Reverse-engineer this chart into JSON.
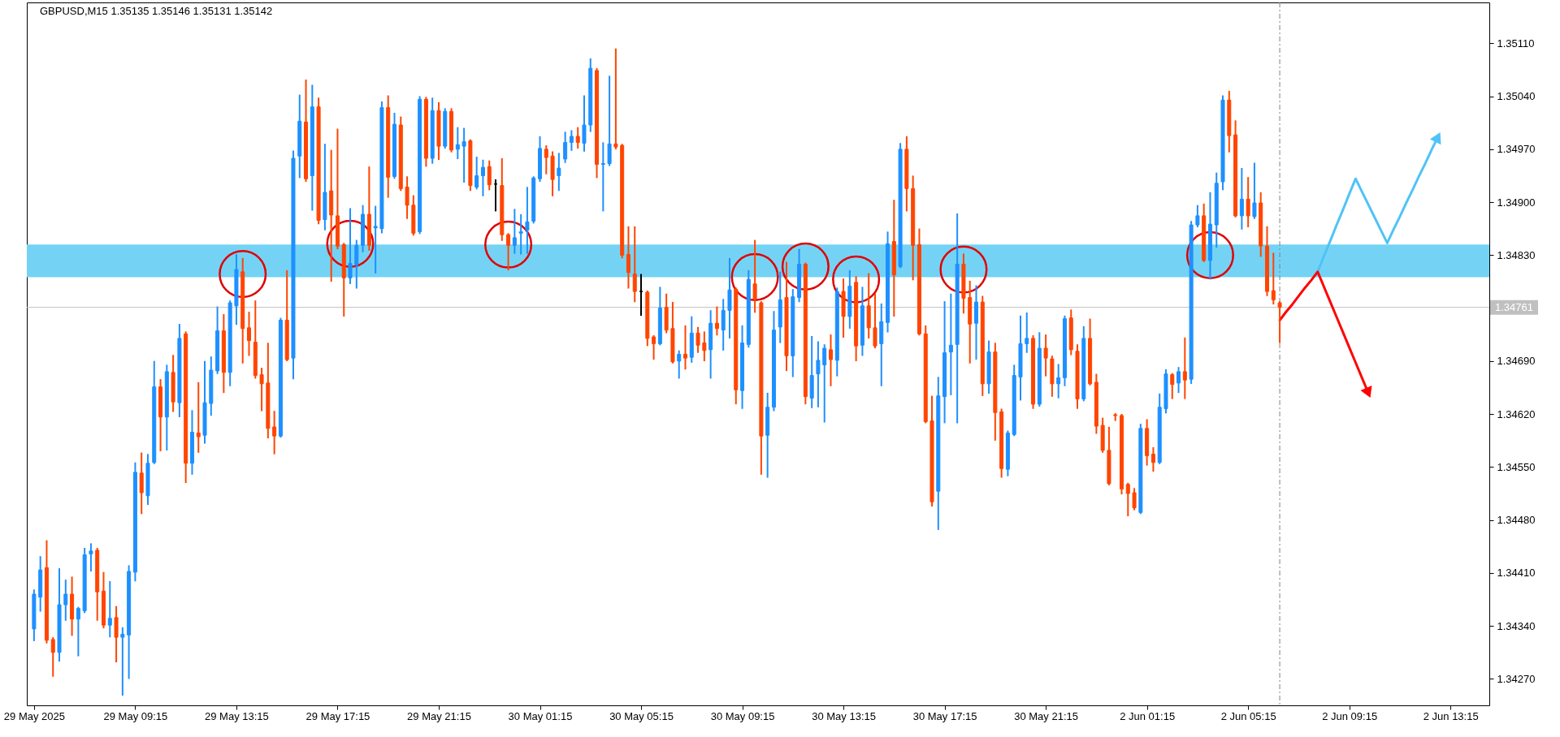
{
  "chart_data": {
    "type": "candlestick",
    "title": "GBPUSD,M15 1.35135 1.35146 1.35131 1.35142",
    "categories": [
      "29 May 2025",
      null,
      null,
      null,
      null,
      null,
      null,
      null,
      null,
      null,
      null,
      null,
      null,
      null,
      null,
      null,
      "29 May 09:15",
      null,
      null,
      null,
      null,
      null,
      null,
      null,
      null,
      null,
      null,
      null,
      null,
      null,
      null,
      null,
      "29 May 13:15",
      null,
      null,
      null,
      null,
      null,
      null,
      null,
      null,
      null,
      null,
      null,
      null,
      null,
      null,
      null,
      "29 May 17:15",
      null,
      null,
      null,
      null,
      null,
      null,
      null,
      null,
      null,
      null,
      null,
      null,
      null,
      null,
      null,
      "29 May 21:15",
      null,
      null,
      null,
      null,
      null,
      null,
      null,
      null,
      null,
      null,
      null,
      null,
      null,
      null,
      null,
      "30 May 01:15",
      null,
      null,
      null,
      null,
      null,
      null,
      null,
      null,
      null,
      null,
      null,
      null,
      null,
      null,
      null,
      "30 May 05:15",
      null,
      null,
      null,
      null,
      null,
      null,
      null,
      null,
      null,
      null,
      null,
      null,
      null,
      null,
      null,
      "30 May 09:15",
      null,
      null,
      null,
      null,
      null,
      null,
      null,
      null,
      null,
      null,
      null,
      null,
      null,
      null,
      null,
      "30 May 13:15",
      null,
      null,
      null,
      null,
      null,
      null,
      null,
      null,
      null,
      null,
      null,
      null,
      null,
      null,
      null,
      "30 May 17:15",
      null,
      null,
      null,
      null,
      null,
      null,
      null,
      null,
      null,
      null,
      null,
      null,
      null,
      null,
      null,
      "30 May 21:15",
      null,
      null,
      null,
      null,
      null,
      null,
      null,
      null,
      null,
      null,
      null,
      null,
      null,
      null,
      null,
      "2 Jun 01:15",
      null,
      null,
      null,
      null,
      null,
      null,
      null,
      null,
      null,
      null,
      null,
      null,
      null,
      null,
      null,
      "2 Jun 05:15",
      null,
      null,
      null,
      null,
      null,
      null,
      null,
      null,
      null,
      null,
      null,
      null,
      null,
      null,
      null,
      "2 Jun 09:15",
      null,
      null,
      null,
      null,
      null,
      null,
      null,
      null,
      null,
      null,
      null,
      null,
      null,
      null,
      null,
      "2 Jun 13:15",
      null,
      null,
      null,
      null,
      null
    ],
    "ohlc": [
      [
        1.34336,
        1.34386,
        1.34322,
        1.34382
      ],
      [
        1.34378,
        1.3443,
        1.34361,
        1.34414
      ],
      [
        1.34417,
        1.34451,
        1.34319,
        1.34321
      ],
      [
        1.34322,
        1.34323,
        1.34275,
        1.34305
      ],
      [
        1.34305,
        1.34414,
        1.34295,
        1.34368
      ],
      [
        1.34368,
        1.34399,
        1.34349,
        1.34382
      ],
      [
        1.34382,
        1.34403,
        1.34329,
        1.34349
      ],
      [
        1.34349,
        1.34363,
        1.34302,
        1.34363
      ],
      [
        1.3436,
        1.34441,
        1.34359,
        1.34434
      ],
      [
        1.34435,
        1.34447,
        1.34414,
        1.34439
      ],
      [
        1.3444,
        1.34441,
        1.34349,
        1.34385
      ],
      [
        1.34386,
        1.34409,
        1.34339,
        1.34341
      ],
      [
        1.34341,
        1.34397,
        1.34327,
        1.3435
      ],
      [
        1.34351,
        1.34364,
        1.34294,
        1.34325
      ],
      [
        1.34325,
        1.34336,
        1.3425,
        1.34329
      ],
      [
        1.34328,
        1.34418,
        1.34272,
        1.34412
      ],
      [
        1.34411,
        1.34554,
        1.34401,
        1.34543
      ],
      [
        1.34542,
        1.34567,
        1.3449,
        1.34516
      ],
      [
        1.34512,
        1.34565,
        1.34502,
        1.34555
      ],
      [
        1.34556,
        1.34688,
        1.34556,
        1.34656
      ],
      [
        1.34656,
        1.34664,
        1.34573,
        1.34616
      ],
      [
        1.34616,
        1.34683,
        1.34574,
        1.34676
      ],
      [
        1.34675,
        1.34696,
        1.34625,
        1.34636
      ],
      [
        1.34635,
        1.34737,
        1.34618,
        1.3472
      ],
      [
        1.34726,
        1.34727,
        1.34531,
        1.34555
      ],
      [
        1.34555,
        1.34623,
        1.34542,
        1.34596
      ],
      [
        1.34595,
        1.3466,
        1.34571,
        1.3459
      ],
      [
        1.34592,
        1.34688,
        1.34583,
        1.34635
      ],
      [
        1.34634,
        1.34694,
        1.3462,
        1.34678
      ],
      [
        1.34677,
        1.3476,
        1.34675,
        1.3473
      ],
      [
        1.3473,
        1.3475,
        1.3465,
        1.34675
      ],
      [
        1.34675,
        1.34768,
        1.34659,
        1.34767
      ],
      [
        1.34763,
        1.34829,
        1.3474,
        1.34811
      ],
      [
        1.34808,
        1.34824,
        1.34689,
        1.34733
      ],
      [
        1.34734,
        1.34753,
        1.34699,
        1.34717
      ],
      [
        1.34715,
        1.34768,
        1.34669,
        1.34671
      ],
      [
        1.34672,
        1.34679,
        1.34626,
        1.3466
      ],
      [
        1.34661,
        1.34712,
        1.3459,
        1.34601
      ],
      [
        1.34603,
        1.34622,
        1.34569,
        1.34591
      ],
      [
        1.34591,
        1.34745,
        1.34591,
        1.34744
      ],
      [
        1.34744,
        1.34808,
        1.34692,
        1.34692
      ],
      [
        1.34694,
        1.34966,
        1.34668,
        1.34958
      ],
      [
        1.34961,
        1.3504,
        1.34934,
        1.35007
      ],
      [
        1.35006,
        1.3506,
        1.34929,
        1.34931
      ],
      [
        1.34935,
        1.35053,
        1.34891,
        1.35026
      ],
      [
        1.35026,
        1.35036,
        1.34873,
        1.34876
      ],
      [
        1.34877,
        1.34975,
        1.34865,
        1.34913
      ],
      [
        1.34915,
        1.34967,
        1.34797,
        1.34883
      ],
      [
        1.34882,
        1.34995,
        1.3484,
        1.34842
      ],
      [
        1.34844,
        1.34844,
        1.34751,
        1.348
      ],
      [
        1.348,
        1.3489,
        1.34794,
        1.34819
      ],
      [
        1.34817,
        1.34848,
        1.34788,
        1.34843
      ],
      [
        1.34843,
        1.34894,
        1.34836,
        1.34884
      ],
      [
        1.34884,
        1.34945,
        1.34838,
        1.34843
      ],
      [
        1.34866,
        1.34893,
        1.34808,
        1.34868
      ],
      [
        1.34865,
        1.35031,
        1.34861,
        1.35025
      ],
      [
        1.35025,
        1.35039,
        1.34908,
        1.34933
      ],
      [
        1.34934,
        1.35016,
        1.34933,
        1.35003
      ],
      [
        1.35002,
        1.35011,
        1.34917,
        1.34918
      ],
      [
        1.3492,
        1.34932,
        1.3488,
        1.34896
      ],
      [
        1.34896,
        1.34907,
        1.34858,
        1.34859
      ],
      [
        1.34861,
        1.35038,
        1.3486,
        1.35036
      ],
      [
        1.35036,
        1.35037,
        1.34949,
        1.34958
      ],
      [
        1.34958,
        1.35036,
        1.34953,
        1.35021
      ],
      [
        1.35021,
        1.3503,
        1.34958,
        1.34974
      ],
      [
        1.34974,
        1.35022,
        1.34973,
        1.3502
      ],
      [
        1.3502,
        1.35022,
        1.34968,
        1.34969
      ],
      [
        1.3497,
        1.34997,
        1.34959,
        1.34976
      ],
      [
        1.34974,
        1.34996,
        1.34928,
        1.3498
      ],
      [
        1.34981,
        1.34981,
        1.34917,
        1.34922
      ],
      [
        1.3492,
        1.34958,
        1.34919,
        1.34935
      ],
      [
        1.34935,
        1.34954,
        1.3491,
        1.34946
      ],
      [
        1.34947,
        1.34953,
        1.34918,
        1.34923
      ],
      [
        1.34924,
        1.34928,
        1.3489,
        1.34924
      ],
      [
        1.34922,
        1.34956,
        1.34851,
        1.34857
      ],
      [
        1.34857,
        1.34857,
        1.34812,
        1.34843
      ],
      [
        1.34843,
        1.34889,
        1.34834,
        1.34853
      ],
      [
        1.34859,
        1.34882,
        1.34833,
        1.34861
      ],
      [
        1.34863,
        1.34918,
        1.34834,
        1.34874
      ],
      [
        1.34875,
        1.34932,
        1.34874,
        1.34932
      ],
      [
        1.34931,
        1.34985,
        1.34929,
        1.34971
      ],
      [
        1.3497,
        1.34973,
        1.34939,
        1.34959
      ],
      [
        1.34961,
        1.34965,
        1.3491,
        1.3493
      ],
      [
        1.34935,
        1.34963,
        1.34917,
        1.34945
      ],
      [
        1.34957,
        1.34991,
        1.34954,
        1.34979
      ],
      [
        1.34979,
        1.34993,
        1.3497,
        1.34987
      ],
      [
        1.34987,
        1.34997,
        1.34973,
        1.34979
      ],
      [
        1.34978,
        1.35039,
        1.34969,
        1.35002
      ],
      [
        1.35002,
        1.35088,
        1.34995,
        1.35077
      ],
      [
        1.35074,
        1.35075,
        1.34934,
        1.3495
      ],
      [
        1.3495,
        1.34977,
        1.3489,
        1.34951
      ],
      [
        1.34951,
        1.35065,
        1.3495,
        1.34977
      ],
      [
        1.34977,
        1.35101,
        1.34972,
        1.34973
      ],
      [
        1.34975,
        1.34975,
        1.34828,
        1.3483
      ],
      [
        1.34831,
        1.34866,
        1.34788,
        1.34807
      ],
      [
        1.34805,
        1.34866,
        1.3477,
        1.34782
      ],
      [
        1.34782,
        1.34803,
        1.34752,
        1.34782
      ],
      [
        1.34781,
        1.34781,
        1.34712,
        1.3472
      ],
      [
        1.34722,
        1.34722,
        1.34694,
        1.34713
      ],
      [
        1.34713,
        1.34786,
        1.34713,
        1.3476
      ],
      [
        1.34761,
        1.34777,
        1.34729,
        1.34731
      ],
      [
        1.34733,
        1.34766,
        1.34689,
        1.34689
      ],
      [
        1.3469,
        1.34702,
        1.34669,
        1.34699
      ],
      [
        1.34699,
        1.34735,
        1.34681,
        1.34694
      ],
      [
        1.34695,
        1.34747,
        1.3469,
        1.34727
      ],
      [
        1.34727,
        1.34733,
        1.34703,
        1.34711
      ],
      [
        1.34714,
        1.34727,
        1.34692,
        1.34704
      ],
      [
        1.34705,
        1.34755,
        1.34669,
        1.3474
      ],
      [
        1.3474,
        1.3476,
        1.34726,
        1.34733
      ],
      [
        1.34731,
        1.3477,
        1.34706,
        1.34757
      ],
      [
        1.34757,
        1.34824,
        1.34722,
        1.34784
      ],
      [
        1.34785,
        1.34785,
        1.34635,
        1.34652
      ],
      [
        1.34651,
        1.34735,
        1.34629,
        1.34714
      ],
      [
        1.34712,
        1.34808,
        1.3471,
        1.34798
      ],
      [
        1.34792,
        1.34848,
        1.34756,
        1.34772
      ],
      [
        1.34767,
        1.34767,
        1.34542,
        1.34591
      ],
      [
        1.34592,
        1.34646,
        1.34538,
        1.34629
      ],
      [
        1.34629,
        1.34754,
        1.34626,
        1.34731
      ],
      [
        1.34735,
        1.34806,
        1.34716,
        1.34771
      ],
      [
        1.34774,
        1.34819,
        1.34679,
        1.34697
      ],
      [
        1.34697,
        1.34783,
        1.34671,
        1.34775
      ],
      [
        1.34774,
        1.34836,
        1.3477,
        1.34818
      ],
      [
        1.34818,
        1.34818,
        1.34635,
        1.34643
      ],
      [
        1.34641,
        1.34721,
        1.3463,
        1.34671
      ],
      [
        1.34673,
        1.34714,
        1.34631,
        1.34691
      ],
      [
        1.34685,
        1.3471,
        1.34611,
        1.34707
      ],
      [
        1.34705,
        1.34723,
        1.34659,
        1.34692
      ],
      [
        1.34691,
        1.34785,
        1.34672,
        1.34782
      ],
      [
        1.34782,
        1.34797,
        1.34723,
        1.34749
      ],
      [
        1.34749,
        1.34808,
        1.34735,
        1.34789
      ],
      [
        1.34794,
        1.348,
        1.34692,
        1.3471
      ],
      [
        1.34711,
        1.34786,
        1.34699,
        1.34763
      ],
      [
        1.34763,
        1.34804,
        1.34722,
        1.34734
      ],
      [
        1.34734,
        1.34777,
        1.34709,
        1.3471
      ],
      [
        1.34713,
        1.34764,
        1.34659,
        1.34742
      ],
      [
        1.34741,
        1.34859,
        1.3473,
        1.34845
      ],
      [
        1.34848,
        1.34901,
        1.34751,
        1.34804
      ],
      [
        1.34815,
        1.34976,
        1.34815,
        1.3497
      ],
      [
        1.3497,
        1.34985,
        1.3489,
        1.34918
      ],
      [
        1.34918,
        1.34933,
        1.34799,
        1.34843
      ],
      [
        1.34844,
        1.34863,
        1.34726,
        1.34726
      ],
      [
        1.34726,
        1.34735,
        1.3461,
        1.3461
      ],
      [
        1.34611,
        1.34642,
        1.345,
        1.34504
      ],
      [
        1.34518,
        1.34667,
        1.34469,
        1.34644
      ],
      [
        1.34643,
        1.34767,
        1.3461,
        1.34701
      ],
      [
        1.34702,
        1.34777,
        1.34647,
        1.34711
      ],
      [
        1.34712,
        1.34883,
        1.3461,
        1.34818
      ],
      [
        1.34818,
        1.3483,
        1.34755,
        1.34773
      ],
      [
        1.34774,
        1.34794,
        1.34689,
        1.34739
      ],
      [
        1.3474,
        1.34788,
        1.34694,
        1.34768
      ],
      [
        1.34768,
        1.34774,
        1.34646,
        1.3466
      ],
      [
        1.3466,
        1.34715,
        1.34649,
        1.34702
      ],
      [
        1.34702,
        1.34712,
        1.34587,
        1.34622
      ],
      [
        1.34623,
        1.34625,
        1.34538,
        1.34548
      ],
      [
        1.34547,
        1.34596,
        1.3454,
        1.34595
      ],
      [
        1.34593,
        1.34683,
        1.34593,
        1.34671
      ],
      [
        1.34669,
        1.34748,
        1.3464,
        1.34713
      ],
      [
        1.34713,
        1.34752,
        1.34703,
        1.3472
      ],
      [
        1.3472,
        1.34722,
        1.34629,
        1.34633
      ],
      [
        1.34633,
        1.34726,
        1.34632,
        1.34707
      ],
      [
        1.34707,
        1.34723,
        1.34672,
        1.34694
      ],
      [
        1.34693,
        1.34695,
        1.34645,
        1.3466
      ],
      [
        1.3466,
        1.34684,
        1.34643,
        1.34668
      ],
      [
        1.34668,
        1.34748,
        1.34659,
        1.34746
      ],
      [
        1.34747,
        1.34756,
        1.347,
        1.34705
      ],
      [
        1.34703,
        1.3471,
        1.34629,
        1.3464
      ],
      [
        1.3464,
        1.34734,
        1.34639,
        1.3472
      ],
      [
        1.3472,
        1.34744,
        1.3466,
        1.3466
      ],
      [
        1.34662,
        1.34671,
        1.34596,
        1.34604
      ],
      [
        1.34605,
        1.34613,
        1.34571,
        1.34572
      ],
      [
        1.34572,
        1.34601,
        1.34528,
        1.34528
      ],
      [
        1.34619,
        1.34619,
        1.34613,
        1.34618
      ],
      [
        1.34618,
        1.34618,
        1.34516,
        1.34521
      ],
      [
        1.34527,
        1.34527,
        1.34487,
        1.34515
      ],
      [
        1.34516,
        1.3452,
        1.34495,
        1.34496
      ],
      [
        1.3449,
        1.34605,
        1.3449,
        1.34601
      ],
      [
        1.34601,
        1.34611,
        1.34554,
        1.34565
      ],
      [
        1.34567,
        1.34574,
        1.34546,
        1.34556
      ],
      [
        1.34556,
        1.34645,
        1.34556,
        1.34629
      ],
      [
        1.34627,
        1.34677,
        1.34623,
        1.34673
      ],
      [
        1.34672,
        1.34672,
        1.34642,
        1.34659
      ],
      [
        1.34661,
        1.3468,
        1.3465,
        1.34676
      ],
      [
        1.34676,
        1.34719,
        1.34642,
        1.34665
      ],
      [
        1.34666,
        1.34873,
        1.34662,
        1.3487
      ],
      [
        1.3487,
        1.34894,
        1.34869,
        1.34882
      ],
      [
        1.34882,
        1.34896,
        1.34823,
        1.34823
      ],
      [
        1.34823,
        1.34911,
        1.348,
        1.34871
      ],
      [
        1.3487,
        1.34937,
        1.34842,
        1.34925
      ],
      [
        1.34927,
        1.35039,
        1.34918,
        1.35035
      ],
      [
        1.35035,
        1.35045,
        1.34968,
        1.34988
      ],
      [
        1.34989,
        1.35006,
        1.34882,
        1.34882
      ],
      [
        1.34882,
        1.34943,
        1.34866,
        1.34904
      ],
      [
        1.34904,
        1.34931,
        1.34869,
        1.34882
      ],
      [
        1.34881,
        1.3495,
        1.3488,
        1.34899
      ],
      [
        1.34899,
        1.34911,
        1.3483,
        1.34842
      ],
      [
        1.34842,
        1.34866,
        1.34778,
        1.34782
      ],
      [
        1.34783,
        1.34831,
        1.34767,
        1.34771
      ],
      [
        1.34767,
        1.34767,
        1.34716,
        1.34761
      ],
      null,
      null,
      null,
      null,
      null,
      null,
      null,
      null,
      null,
      null,
      null,
      null,
      null,
      null,
      null,
      null,
      null,
      null,
      null,
      null,
      null,
      null,
      null,
      null,
      null,
      null,
      null,
      null,
      null,
      null,
      null,
      null
    ],
    "colors": [
      "#1e90ff",
      "#1e90ff",
      "#ff4500",
      "#ff4500",
      "#1e90ff",
      "#1e90ff",
      "#ff4500",
      "#1e90ff",
      "#1e90ff",
      "#1e90ff",
      "#ff4500",
      "#ff4500",
      "#1e90ff",
      "#ff4500",
      "#1e90ff",
      "#1e90ff",
      "#1e90ff",
      "#ff4500",
      "#1e90ff",
      "#1e90ff",
      "#ff4500",
      "#1e90ff",
      "#ff4500",
      "#1e90ff",
      "#ff4500",
      "#1e90ff",
      "#ff4500",
      "#1e90ff",
      "#1e90ff",
      "#1e90ff",
      "#ff4500",
      "#1e90ff",
      "#1e90ff",
      "#ff4500",
      "#ff4500",
      "#ff4500",
      "#ff4500",
      "#ff4500",
      "#ff4500",
      "#1e90ff",
      "#ff4500",
      "#1e90ff",
      "#1e90ff",
      "#ff4500",
      "#1e90ff",
      "#ff4500",
      "#1e90ff",
      "#ff4500",
      "#ff4500",
      "#ff4500",
      "#1e90ff",
      "#1e90ff",
      "#1e90ff",
      "#ff4500",
      "#1e90ff",
      "#1e90ff",
      "#ff4500",
      "#1e90ff",
      "#ff4500",
      "#ff4500",
      "#ff4500",
      "#1e90ff",
      "#ff4500",
      "#1e90ff",
      "#ff4500",
      "#1e90ff",
      "#ff4500",
      "#1e90ff",
      "#1e90ff",
      "#ff4500",
      "#1e90ff",
      "#1e90ff",
      "#ff4500",
      "#000000",
      "#ff4500",
      "#ff4500",
      "#1e90ff",
      "#1e90ff",
      "#1e90ff",
      "#1e90ff",
      "#1e90ff",
      "#ff4500",
      "#ff4500",
      "#1e90ff",
      "#1e90ff",
      "#1e90ff",
      "#ff4500",
      "#1e90ff",
      "#1e90ff",
      "#ff4500",
      "#1e90ff",
      "#1e90ff",
      "#ff4500",
      "#ff4500",
      "#ff4500",
      "#ff4500",
      "#000000",
      "#ff4500",
      "#ff4500",
      "#1e90ff",
      "#ff4500",
      "#ff4500",
      "#1e90ff",
      "#ff4500",
      "#1e90ff",
      "#ff4500",
      "#ff4500",
      "#1e90ff",
      "#ff4500",
      "#1e90ff",
      "#1e90ff",
      "#ff4500",
      "#1e90ff",
      "#1e90ff",
      "#ff4500",
      "#ff4500",
      "#1e90ff",
      "#1e90ff",
      "#1e90ff",
      "#ff4500",
      "#1e90ff",
      "#1e90ff",
      "#ff4500",
      "#1e90ff",
      "#1e90ff",
      "#1e90ff",
      "#ff4500",
      "#1e90ff",
      "#ff4500",
      "#1e90ff",
      "#ff4500",
      "#1e90ff",
      "#ff4500",
      "#ff4500",
      "#1e90ff",
      "#1e90ff",
      "#ff4500",
      "#1e90ff",
      "#ff4500",
      "#ff4500",
      "#ff4500",
      "#ff4500",
      "#ff4500",
      "#1e90ff",
      "#1e90ff",
      "#1e90ff",
      "#1e90ff",
      "#ff4500",
      "#ff4500",
      "#1e90ff",
      "#ff4500",
      "#1e90ff",
      "#ff4500",
      "#ff4500",
      "#1e90ff",
      "#1e90ff",
      "#1e90ff",
      "#1e90ff",
      "#ff4500",
      "#1e90ff",
      "#ff4500",
      "#ff4500",
      "#1e90ff",
      "#1e90ff",
      "#ff4500",
      "#ff4500",
      "#1e90ff",
      "#ff4500",
      "#ff4500",
      "#ff4500",
      "#ff4500",
      "#ff4500",
      "#ff4500",
      "#ff4500",
      "#ff4500",
      "#1e90ff",
      "#ff4500",
      "#ff4500",
      "#1e90ff",
      "#1e90ff",
      "#ff4500",
      "#1e90ff",
      "#ff4500",
      "#1e90ff",
      "#1e90ff",
      "#ff4500",
      "#1e90ff",
      "#1e90ff",
      "#1e90ff",
      "#ff4500",
      "#ff4500",
      "#1e90ff",
      "#ff4500",
      "#1e90ff",
      "#ff4500",
      "#ff4500",
      "#ff4500",
      "#ff4500",
      null,
      null,
      null,
      null,
      null,
      null,
      null,
      null,
      null,
      null,
      null,
      null,
      null,
      null,
      null,
      null,
      null,
      null,
      null,
      null,
      null,
      null,
      null,
      null,
      null,
      null,
      null,
      null,
      null,
      null,
      null,
      null
    ],
    "series": [
      {
        "type": "scatter",
        "marker": "circle",
        "color": "#e00000",
        "values": [
          null,
          null,
          null,
          null,
          null,
          null,
          null,
          null,
          null,
          null,
          null,
          null,
          null,
          null,
          null,
          null,
          null,
          null,
          null,
          null,
          null,
          null,
          null,
          null,
          null,
          null,
          null,
          null,
          null,
          null,
          null,
          null,
          null,
          1.34805,
          null,
          null,
          null,
          null,
          null,
          null,
          null,
          null,
          null,
          null,
          null,
          null,
          null,
          null,
          null,
          null,
          1.34845,
          null,
          null,
          null,
          null,
          null,
          null,
          null,
          null,
          null,
          null,
          null,
          null,
          null,
          null,
          null,
          null,
          null,
          null,
          null,
          null,
          null,
          null,
          null,
          null,
          1.34844,
          null,
          null,
          null,
          null,
          null,
          null,
          null,
          null,
          null,
          null,
          null,
          null,
          null,
          null,
          null,
          null,
          null,
          null,
          null,
          null,
          null,
          null,
          null,
          null,
          null,
          null,
          null,
          null,
          null,
          null,
          null,
          null,
          null,
          null,
          null,
          null,
          null,
          null,
          1.34801,
          null,
          null,
          null,
          null,
          null,
          null,
          null,
          1.34815,
          null,
          null,
          null,
          null,
          null,
          null,
          null,
          1.34798,
          null,
          null,
          null,
          null,
          null,
          null,
          null,
          null,
          null,
          null,
          null,
          null,
          null,
          null,
          null,
          null,
          1.34811,
          null,
          null,
          null,
          null,
          null,
          null,
          null,
          null,
          null,
          null,
          null,
          null,
          null,
          null,
          null,
          null,
          null,
          null,
          null,
          null,
          null,
          null,
          null,
          null,
          null,
          null,
          null,
          null,
          null,
          null,
          null,
          null,
          null,
          null,
          null,
          null,
          null,
          null,
          1.3483,
          null,
          null,
          null,
          null,
          null,
          null,
          null,
          null,
          null,
          null,
          null,
          null,
          null,
          null,
          null,
          null,
          null,
          null,
          null,
          null,
          null,
          null,
          null,
          null,
          null,
          null,
          null,
          null,
          null,
          null,
          null,
          null,
          null,
          null,
          null,
          null,
          null,
          null,
          null,
          null,
          null,
          null,
          null
        ]
      },
      {
        "type": "line",
        "color": "#4fc3f7",
        "values": [
          null,
          null,
          null,
          null,
          null,
          null,
          null,
          null,
          null,
          null,
          null,
          null,
          null,
          null,
          null,
          null,
          null,
          null,
          null,
          null,
          null,
          null,
          null,
          null,
          null,
          null,
          null,
          null,
          null,
          null,
          null,
          null,
          null,
          null,
          null,
          null,
          null,
          null,
          null,
          null,
          null,
          null,
          null,
          null,
          null,
          null,
          null,
          null,
          null,
          null,
          null,
          null,
          null,
          null,
          null,
          null,
          null,
          null,
          null,
          null,
          null,
          null,
          null,
          null,
          null,
          null,
          null,
          null,
          null,
          null,
          null,
          null,
          null,
          null,
          null,
          null,
          null,
          null,
          null,
          null,
          null,
          null,
          null,
          null,
          null,
          null,
          null,
          null,
          null,
          null,
          null,
          null,
          null,
          null,
          null,
          null,
          null,
          null,
          null,
          null,
          null,
          null,
          null,
          null,
          null,
          null,
          null,
          null,
          null,
          null,
          null,
          null,
          null,
          null,
          null,
          null,
          null,
          null,
          null,
          null,
          null,
          null,
          null,
          null,
          null,
          null,
          null,
          null,
          null,
          null,
          null,
          null,
          null,
          null,
          null,
          null,
          null,
          null,
          null,
          null,
          null,
          null,
          null,
          null,
          null,
          null,
          null,
          null,
          null,
          null,
          null,
          null,
          null,
          null,
          null,
          null,
          null,
          null,
          null,
          null,
          null,
          null,
          null,
          null,
          null,
          null,
          null,
          null,
          null,
          null,
          null,
          null,
          null,
          null,
          null,
          null,
          null,
          null,
          null,
          null,
          null,
          null,
          null,
          null,
          null,
          null,
          null,
          null,
          null,
          null,
          null,
          null,
          null,
          null,
          null,
          null,
          null,
          null,
          null,
          null,
          null,
          null,
          null,
          1.34808,
          1.34829,
          1.34849,
          1.3487,
          1.3489,
          1.34911,
          1.34931,
          1.34914,
          1.34897,
          1.3488,
          1.34863,
          1.34846,
          1.34864,
          1.34881,
          1.34899,
          1.34916,
          1.34934,
          1.34951,
          1.34969,
          1.34986,
          null,
          null,
          null,
          null,
          null,
          null,
          null
        ]
      },
      {
        "type": "line",
        "color": "#ff0000",
        "values": [
          null,
          null,
          null,
          null,
          null,
          null,
          null,
          null,
          null,
          null,
          null,
          null,
          null,
          null,
          null,
          null,
          null,
          null,
          null,
          null,
          null,
          null,
          null,
          null,
          null,
          null,
          null,
          null,
          null,
          null,
          null,
          null,
          null,
          null,
          null,
          null,
          null,
          null,
          null,
          null,
          null,
          null,
          null,
          null,
          null,
          null,
          null,
          null,
          null,
          null,
          null,
          null,
          null,
          null,
          null,
          null,
          null,
          null,
          null,
          null,
          null,
          null,
          null,
          null,
          null,
          null,
          null,
          null,
          null,
          null,
          null,
          null,
          null,
          null,
          null,
          null,
          null,
          null,
          null,
          null,
          null,
          null,
          null,
          null,
          null,
          null,
          null,
          null,
          null,
          null,
          null,
          null,
          null,
          null,
          null,
          null,
          null,
          null,
          null,
          null,
          null,
          null,
          null,
          null,
          null,
          null,
          null,
          null,
          null,
          null,
          null,
          null,
          null,
          null,
          null,
          null,
          null,
          null,
          null,
          null,
          null,
          null,
          null,
          null,
          null,
          null,
          null,
          null,
          null,
          null,
          null,
          null,
          null,
          null,
          null,
          null,
          null,
          null,
          null,
          null,
          null,
          null,
          null,
          null,
          null,
          null,
          null,
          null,
          null,
          null,
          null,
          null,
          null,
          null,
          null,
          null,
          null,
          null,
          null,
          null,
          null,
          null,
          null,
          null,
          null,
          null,
          null,
          null,
          null,
          null,
          null,
          null,
          null,
          null,
          null,
          null,
          null,
          null,
          null,
          null,
          null,
          null,
          null,
          null,
          null,
          null,
          null,
          null,
          null,
          null,
          null,
          null,
          null,
          null,
          null,
          null,
          null,
          1.34744,
          1.34755,
          1.34765,
          1.34776,
          1.34787,
          1.34797,
          1.34808,
          1.34788,
          1.34768,
          1.34748,
          1.34728,
          1.34708,
          1.34688,
          1.34668,
          1.34648,
          null,
          null,
          null,
          null,
          null,
          null,
          null,
          null,
          null,
          null,
          null,
          null,
          null,
          null,
          null,
          null,
          null,
          null
        ]
      }
    ],
    "ylim": [
      1.34235,
      1.35164
    ],
    "yticks": [
      {
        "value": 1.3427,
        "label": "1.34270"
      },
      {
        "value": 1.3434,
        "label": "1.34340"
      },
      {
        "value": 1.3441,
        "label": "1.34410"
      },
      {
        "value": 1.3448,
        "label": "1.34480"
      },
      {
        "value": 1.3455,
        "label": "1.34550"
      },
      {
        "value": 1.3462,
        "label": "1.34620"
      },
      {
        "value": 1.3469,
        "label": "1.34690"
      },
      {
        "value": 1.3483,
        "label": "1.34830"
      },
      {
        "value": 1.349,
        "label": "1.34900"
      },
      {
        "value": 1.3497,
        "label": "1.34970"
      },
      {
        "value": 1.3504,
        "label": "1.35040"
      },
      {
        "value": 1.3511,
        "label": "1.35110"
      }
    ],
    "ref_lines": [
      {
        "axis": "y",
        "value": 1.34761,
        "label": "1.34761",
        "color": "#c0c0c0"
      }
    ],
    "bands": [
      {
        "axis": "y",
        "from": 1.34801,
        "to": 1.34844,
        "color": "#74d3f5"
      }
    ],
    "grid": false
  }
}
